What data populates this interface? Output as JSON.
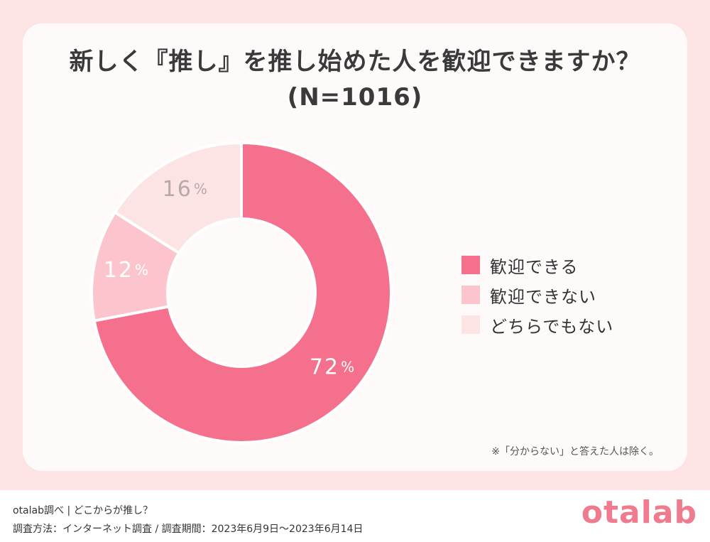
{
  "header": {
    "title_line1": "新しく『推し』を推し始めた人を歓迎できますか？",
    "title_line2": "(N=1016)"
  },
  "chart_data": {
    "type": "pie",
    "style": "donut",
    "title": "新しく『推し』を推し始めた人を歓迎できますか？ (N=1016)",
    "n": 1016,
    "categories": [
      "歓迎できる",
      "歓迎できない",
      "どちらでもない"
    ],
    "values": [
      72,
      12,
      16
    ],
    "value_labels": [
      "72",
      "12",
      "16"
    ],
    "unit": "%",
    "colors": [
      "#f5708d",
      "#fcc5cd",
      "#fde4e4"
    ],
    "label_colors": [
      "#ffffff",
      "#ffffff",
      "#b8a8ab"
    ],
    "start": "top",
    "direction": "clockwise",
    "legend_position": "right"
  },
  "note": "※「分からない」と答えた人は除く。",
  "footer": {
    "source": "otalab調べ | どこからが推し？",
    "method": "調査方法：インターネット調査 / 調査期間：2023年6月9日〜2023年6月14日",
    "logo": "otalab"
  }
}
